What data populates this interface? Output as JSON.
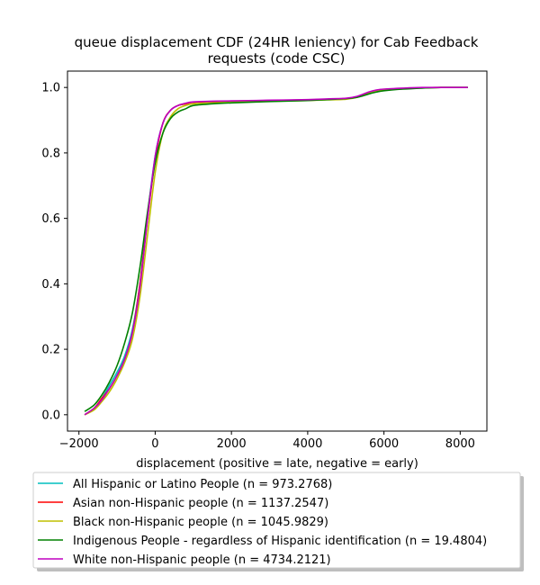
{
  "chart_data": {
    "type": "line",
    "title": [
      "queue displacement CDF (24HR leniency) for Cab Feedback",
      "requests (code CSC)"
    ],
    "xlabel": "displacement (positive = late, negative = early)",
    "ylabel": "",
    "xlim": [
      -2300,
      8700
    ],
    "ylim": [
      -0.05,
      1.05
    ],
    "xticks": [
      -2000,
      0,
      2000,
      4000,
      6000,
      8000
    ],
    "xtick_labels": [
      "−2000",
      "0",
      "2000",
      "4000",
      "6000",
      "8000"
    ],
    "yticks": [
      0.0,
      0.2,
      0.4,
      0.6,
      0.8,
      1.0
    ],
    "ytick_labels": [
      "0.0",
      "0.2",
      "0.4",
      "0.6",
      "0.8",
      "1.0"
    ],
    "grid": false,
    "legend_position": "below",
    "series": [
      {
        "name": "All Hispanic or Latino People (n = 973.2768)",
        "color": "#00bfbf",
        "x": [
          -1850,
          -1600,
          -1400,
          -1200,
          -1000,
          -800,
          -600,
          -400,
          -200,
          0,
          200,
          400,
          600,
          800,
          1000,
          1500,
          2000,
          3000,
          4000,
          4500,
          5000,
          5300,
          5600,
          5800,
          6000,
          6500,
          7000,
          7500,
          8200
        ],
        "y": [
          0.0,
          0.02,
          0.05,
          0.09,
          0.13,
          0.18,
          0.26,
          0.4,
          0.61,
          0.79,
          0.89,
          0.93,
          0.945,
          0.95,
          0.955,
          0.957,
          0.958,
          0.96,
          0.962,
          0.964,
          0.966,
          0.972,
          0.985,
          0.991,
          0.994,
          0.997,
          0.999,
          1.0,
          1.0
        ]
      },
      {
        "name": "Asian non-Hispanic people (n = 1137.2547)",
        "color": "#ff0000",
        "x": [
          -1850,
          -1600,
          -1400,
          -1200,
          -1000,
          -800,
          -600,
          -400,
          -200,
          0,
          200,
          400,
          600,
          800,
          1000,
          1500,
          2000,
          3000,
          4000,
          4500,
          5000,
          5300,
          5600,
          5800,
          6000,
          6500,
          7000,
          7500,
          8200
        ],
        "y": [
          0.0,
          0.02,
          0.05,
          0.08,
          0.12,
          0.17,
          0.25,
          0.4,
          0.6,
          0.78,
          0.89,
          0.93,
          0.945,
          0.95,
          0.955,
          0.957,
          0.958,
          0.96,
          0.962,
          0.964,
          0.966,
          0.972,
          0.985,
          0.991,
          0.994,
          0.997,
          0.999,
          1.0,
          1.0
        ]
      },
      {
        "name": "Black non-Hispanic people (n = 1045.9829)",
        "color": "#bfbf00",
        "x": [
          -1850,
          -1600,
          -1400,
          -1200,
          -1000,
          -800,
          -600,
          -400,
          -200,
          0,
          200,
          400,
          600,
          800,
          1000,
          1500,
          2000,
          3000,
          4000,
          4500,
          5000,
          5300,
          5600,
          5800,
          6000,
          6500,
          7000,
          7500,
          8200
        ],
        "y": [
          0.0,
          0.015,
          0.04,
          0.07,
          0.11,
          0.16,
          0.23,
          0.36,
          0.55,
          0.74,
          0.86,
          0.91,
          0.935,
          0.945,
          0.95,
          0.953,
          0.955,
          0.958,
          0.96,
          0.962,
          0.964,
          0.97,
          0.983,
          0.99,
          0.993,
          0.996,
          0.999,
          1.0,
          1.0
        ]
      },
      {
        "name": "Indigenous People - regardless of Hispanic identification (n = 19.4804)",
        "color": "#008000",
        "x": [
          -1850,
          -1600,
          -1400,
          -1200,
          -1000,
          -800,
          -600,
          -400,
          -200,
          0,
          200,
          400,
          600,
          800,
          1000,
          1500,
          2000,
          3000,
          4000,
          4500,
          5000,
          5300,
          5600,
          5800,
          6000,
          6500,
          7000,
          7500,
          8200
        ],
        "y": [
          0.01,
          0.03,
          0.06,
          0.1,
          0.15,
          0.22,
          0.31,
          0.45,
          0.62,
          0.77,
          0.86,
          0.905,
          0.925,
          0.935,
          0.945,
          0.95,
          0.953,
          0.957,
          0.96,
          0.963,
          0.966,
          0.97,
          0.98,
          0.986,
          0.99,
          0.995,
          0.998,
          1.0,
          1.0
        ]
      },
      {
        "name": "White non-Hispanic people (n = 4734.2121)",
        "color": "#bf00bf",
        "x": [
          -1850,
          -1600,
          -1400,
          -1200,
          -1000,
          -800,
          -600,
          -400,
          -200,
          0,
          200,
          400,
          600,
          800,
          1000,
          1500,
          2000,
          3000,
          4000,
          4500,
          5000,
          5300,
          5600,
          5800,
          6000,
          6500,
          7000,
          7500,
          8200
        ],
        "y": [
          0.0,
          0.02,
          0.045,
          0.08,
          0.12,
          0.17,
          0.25,
          0.39,
          0.6,
          0.79,
          0.89,
          0.93,
          0.945,
          0.952,
          0.956,
          0.958,
          0.959,
          0.961,
          0.963,
          0.965,
          0.967,
          0.973,
          0.986,
          0.992,
          0.995,
          0.998,
          1.0,
          1.0,
          1.0
        ]
      }
    ]
  }
}
